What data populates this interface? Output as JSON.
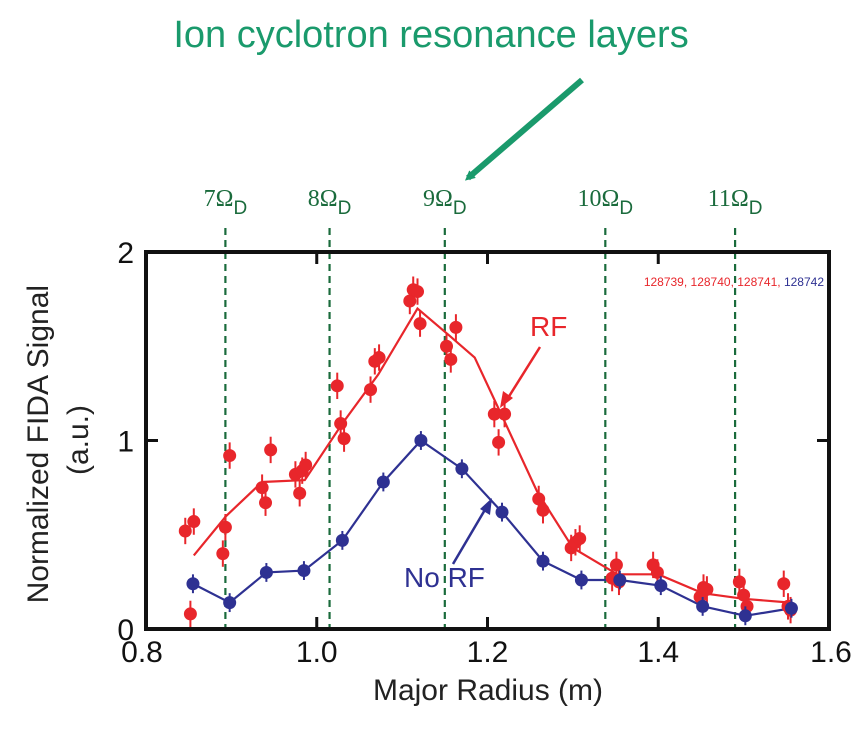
{
  "chart_data": {
    "type": "scatter",
    "title": "Ion cyclotron resonance layers",
    "xlabel": "Major Radius (m)",
    "ylabel": "Normalized FIDA Signal (a.u.)",
    "xlim": [
      0.8,
      1.6
    ],
    "ylim": [
      0,
      2
    ],
    "x_ticks": [
      "0.8",
      "1.0",
      "1.2",
      "1.4",
      "1.6"
    ],
    "y_ticks": [
      "0",
      "1",
      "2"
    ],
    "grid": false,
    "colors": {
      "rf": "#e8262b",
      "norf": "#2e3192",
      "resonance": "#1a6b3c",
      "title": "#1a9a6c"
    },
    "resonance_layers": [
      {
        "label": "7Ω",
        "sub": "D",
        "x": 0.893
      },
      {
        "label": "8Ω",
        "sub": "D",
        "x": 1.015
      },
      {
        "label": "9Ω",
        "sub": "D",
        "x": 1.15
      },
      {
        "label": "10Ω",
        "sub": "D",
        "x": 1.338
      },
      {
        "label": "11Ω",
        "sub": "D",
        "x": 1.49
      }
    ],
    "shot_numbers": {
      "rf": "128739, 128740, 128741,",
      "norf": "128742"
    },
    "annotations": {
      "rf": "RF",
      "norf": "No RF"
    },
    "series": [
      {
        "name": "RF",
        "color": "#e8262b",
        "points": [
          [
            0.846,
            0.52
          ],
          [
            0.852,
            0.08
          ],
          [
            0.856,
            0.57
          ],
          [
            0.89,
            0.4
          ],
          [
            0.893,
            0.54
          ],
          [
            0.898,
            0.92
          ],
          [
            0.936,
            0.75
          ],
          [
            0.94,
            0.67
          ],
          [
            0.946,
            0.95
          ],
          [
            0.975,
            0.82
          ],
          [
            0.98,
            0.72
          ],
          [
            0.983,
            0.84
          ],
          [
            0.987,
            0.87
          ],
          [
            1.024,
            1.29
          ],
          [
            1.028,
            1.09
          ],
          [
            1.032,
            1.01
          ],
          [
            1.063,
            1.27
          ],
          [
            1.068,
            1.42
          ],
          [
            1.073,
            1.44
          ],
          [
            1.109,
            1.74
          ],
          [
            1.113,
            1.8
          ],
          [
            1.118,
            1.79
          ],
          [
            1.121,
            1.62
          ],
          [
            1.152,
            1.5
          ],
          [
            1.157,
            1.43
          ],
          [
            1.163,
            1.6
          ],
          [
            1.208,
            1.14
          ],
          [
            1.213,
            0.99
          ],
          [
            1.22,
            1.14
          ],
          [
            1.26,
            0.69
          ],
          [
            1.265,
            0.63
          ],
          [
            1.298,
            0.43
          ],
          [
            1.303,
            0.46
          ],
          [
            1.308,
            0.48
          ],
          [
            1.346,
            0.27
          ],
          [
            1.351,
            0.34
          ],
          [
            1.354,
            0.25
          ],
          [
            1.394,
            0.34
          ],
          [
            1.399,
            0.3
          ],
          [
            1.449,
            0.17
          ],
          [
            1.453,
            0.22
          ],
          [
            1.457,
            0.21
          ],
          [
            1.495,
            0.25
          ],
          [
            1.5,
            0.18
          ],
          [
            1.504,
            0.12
          ],
          [
            1.547,
            0.24
          ],
          [
            1.552,
            0.12
          ],
          [
            1.555,
            0.1
          ]
        ],
        "line": [
          [
            0.856,
            0.39
          ],
          [
            0.894,
            0.6
          ],
          [
            0.936,
            0.78
          ],
          [
            0.986,
            0.79
          ],
          [
            1.03,
            1.09
          ],
          [
            1.072,
            1.35
          ],
          [
            1.118,
            1.7
          ],
          [
            1.157,
            1.55
          ],
          [
            1.185,
            1.44
          ],
          [
            1.217,
            1.13
          ],
          [
            1.258,
            0.73
          ],
          [
            1.3,
            0.43
          ],
          [
            1.352,
            0.29
          ],
          [
            1.4,
            0.29
          ],
          [
            1.452,
            0.19
          ],
          [
            1.5,
            0.16
          ],
          [
            1.555,
            0.14
          ]
        ]
      },
      {
        "name": "No RF",
        "color": "#2e3192",
        "points": [
          [
            0.855,
            0.24
          ],
          [
            0.898,
            0.14
          ],
          [
            0.941,
            0.3
          ],
          [
            0.985,
            0.31
          ],
          [
            1.03,
            0.47
          ],
          [
            1.078,
            0.78
          ],
          [
            1.122,
            1.0
          ],
          [
            1.17,
            0.85
          ],
          [
            1.217,
            0.62
          ],
          [
            1.265,
            0.36
          ],
          [
            1.31,
            0.26
          ],
          [
            1.355,
            0.26
          ],
          [
            1.403,
            0.23
          ],
          [
            1.452,
            0.12
          ],
          [
            1.502,
            0.07
          ],
          [
            1.556,
            0.11
          ]
        ]
      }
    ]
  }
}
